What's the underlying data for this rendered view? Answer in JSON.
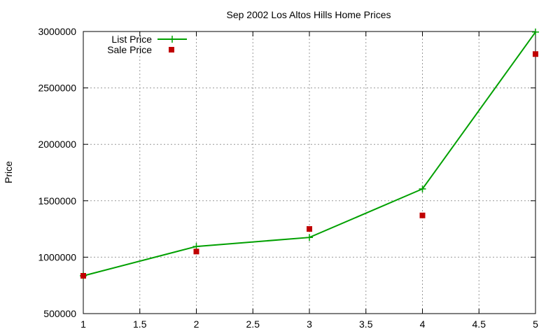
{
  "chart_data": {
    "type": "line",
    "title": "Sep 2002 Los Altos Hills Home Prices",
    "xlabel": "",
    "ylabel": "Price",
    "xlim": [
      1,
      5
    ],
    "ylim": [
      500000,
      3000000
    ],
    "x_ticks": [
      "1",
      "1.5",
      "2",
      "2.5",
      "3",
      "3.5",
      "4",
      "4.5",
      "5"
    ],
    "y_ticks": [
      "500000",
      "1000000",
      "1500000",
      "2000000",
      "2500000",
      "3000000"
    ],
    "grid": true,
    "legend_position": "top-left",
    "series": [
      {
        "name": "List Price",
        "style": "line-with-plus-markers",
        "color": "#00a000",
        "x": [
          1,
          2,
          3,
          4,
          5
        ],
        "y": [
          835000,
          1095000,
          1175000,
          1605000,
          2995000
        ]
      },
      {
        "name": "Sale Price",
        "style": "square-markers",
        "color": "#c00000",
        "x": [
          1,
          2,
          3,
          4,
          5
        ],
        "y": [
          835000,
          1050000,
          1250000,
          1370000,
          2800000
        ]
      }
    ]
  }
}
